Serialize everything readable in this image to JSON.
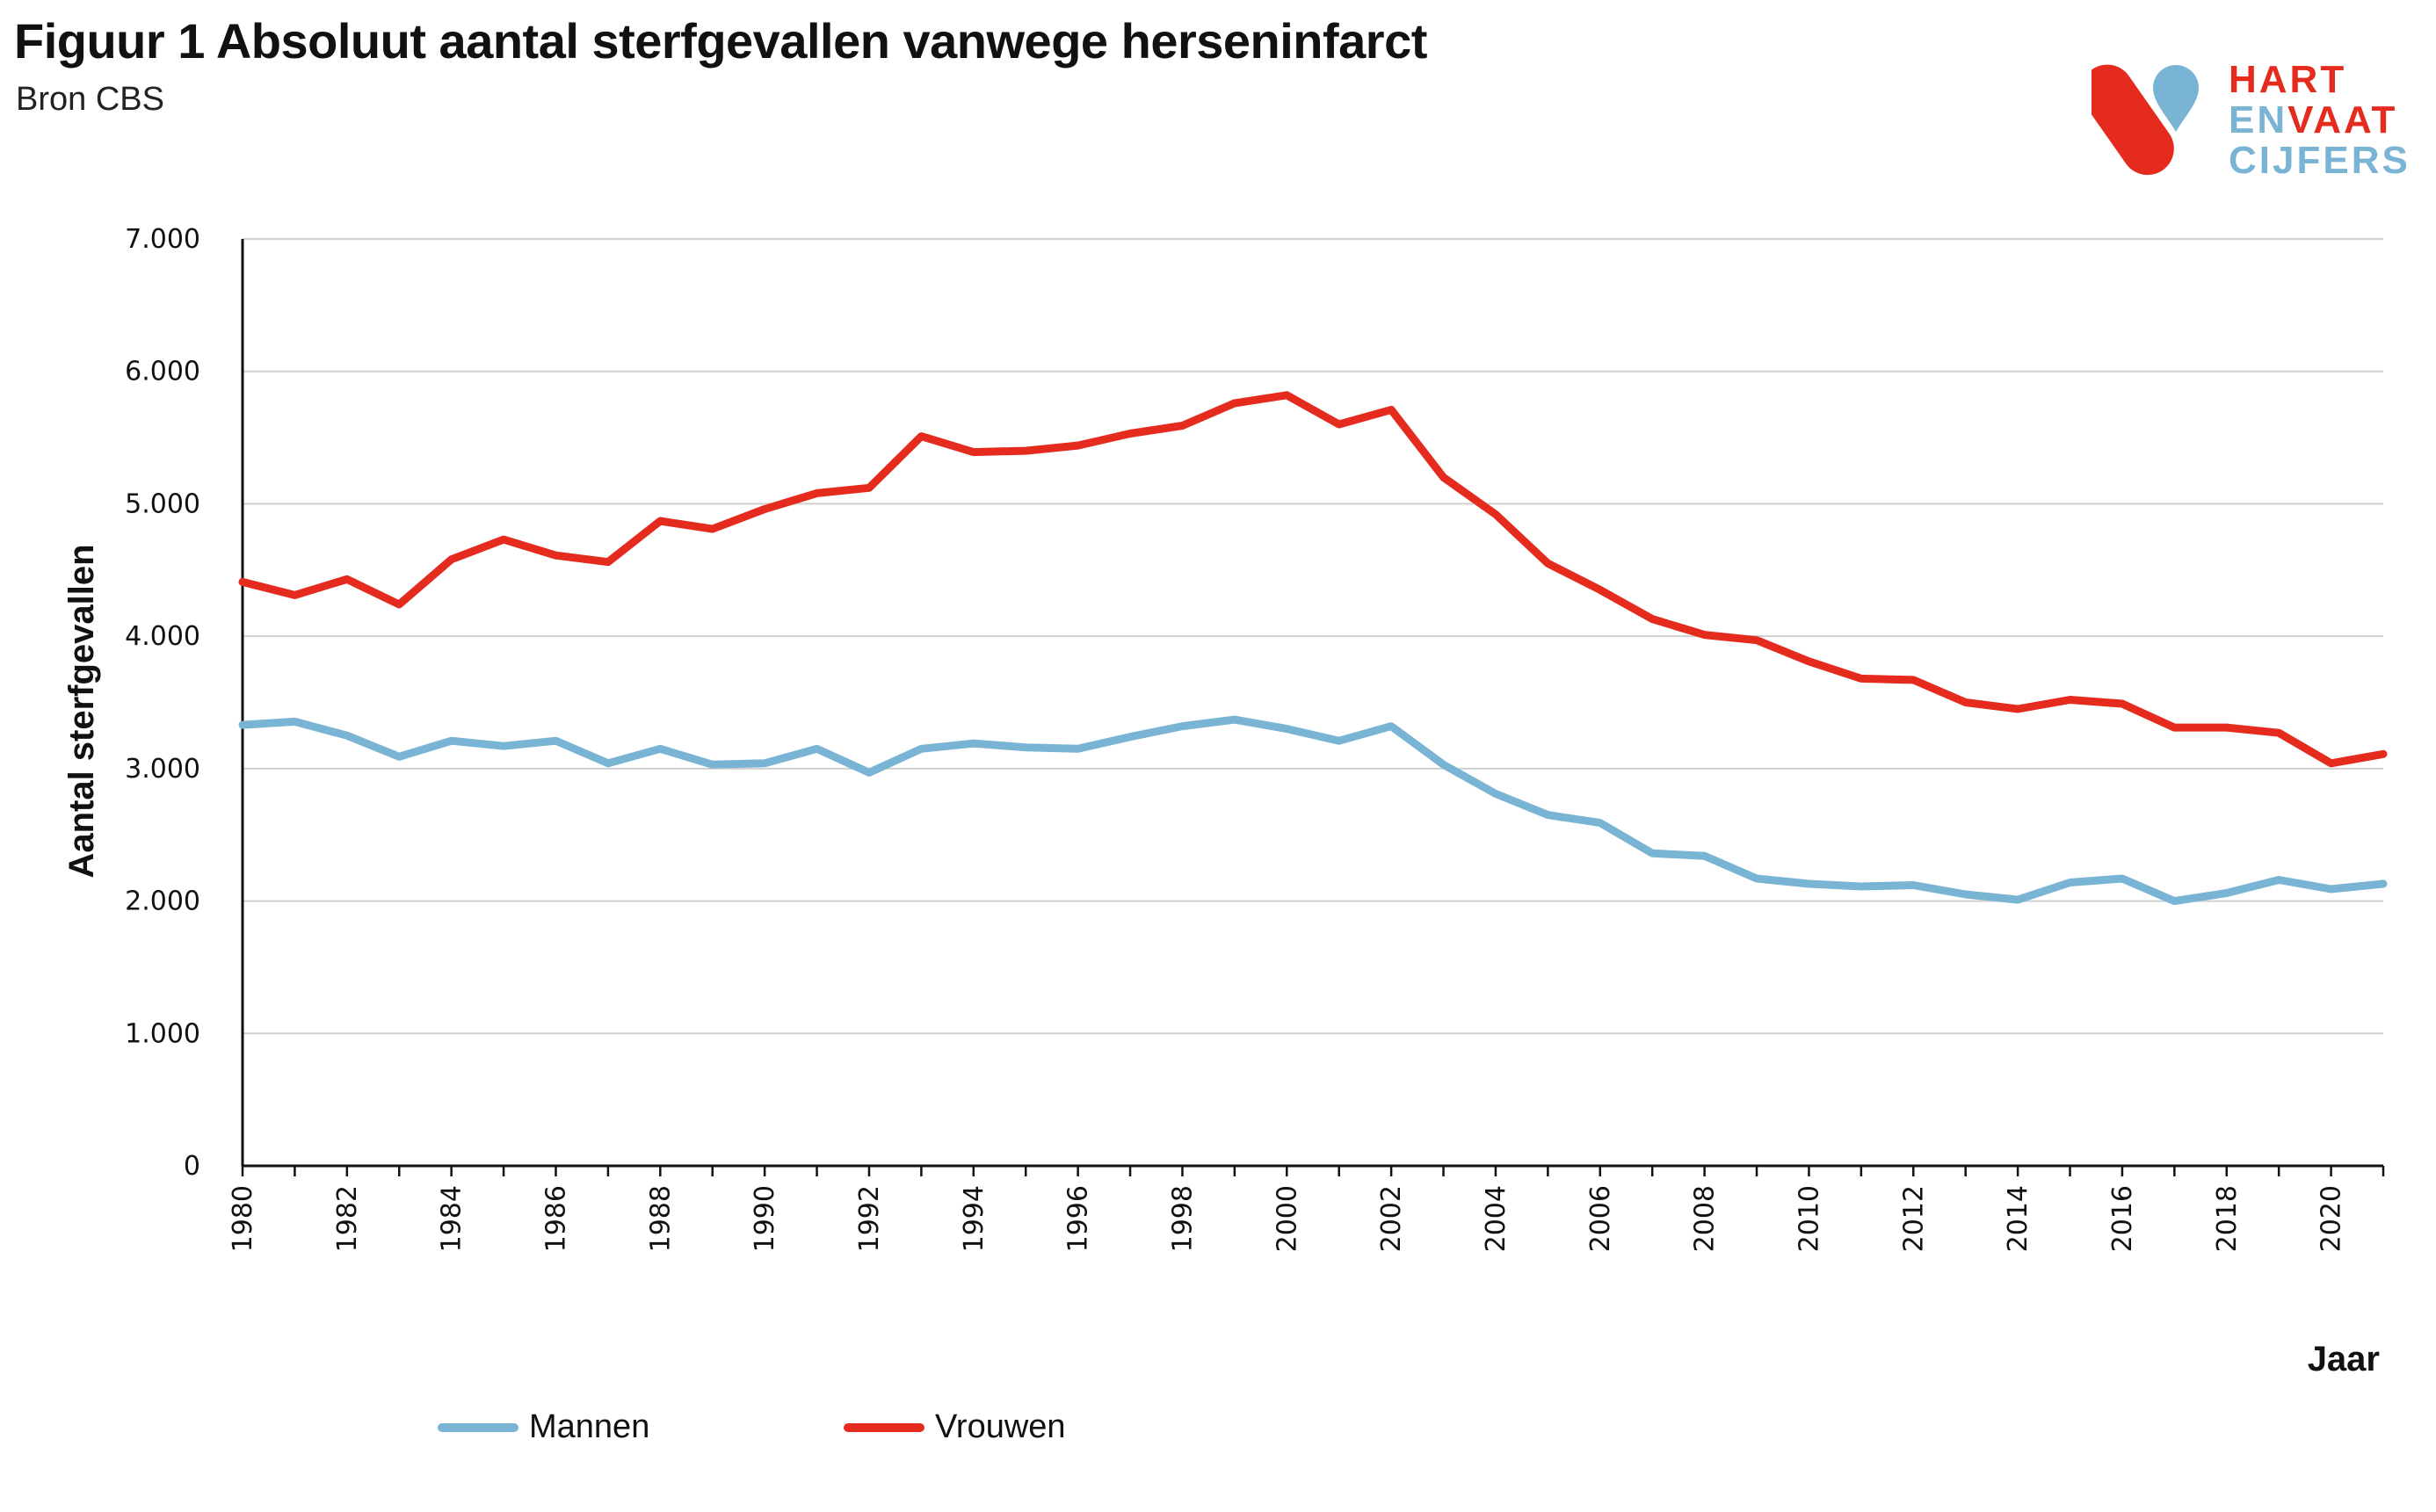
{
  "header": {
    "title": "Figuur 1 Absoluut aantal sterfgevallen vanwege herseninfarct",
    "subtitle": "Bron CBS"
  },
  "logo": {
    "line1": [
      "HART"
    ],
    "line2": [
      "EN",
      "VAAT"
    ],
    "line3": [
      "CIJFERS"
    ],
    "colors": {
      "red": "#e52b1e",
      "blue": "#7ab4d4"
    }
  },
  "chart_data": {
    "type": "line",
    "title": "Figuur 1 Absoluut aantal sterfgevallen vanwege herseninfarct",
    "xlabel": "Jaar",
    "ylabel": "Aantal sterfgevallen",
    "ylim": [
      0,
      7000
    ],
    "yticks": [
      "0",
      "1.000",
      "2.000",
      "3.000",
      "4.000",
      "5.000",
      "6.000",
      "7.000"
    ],
    "xticks": [
      "1980",
      "1982",
      "1984",
      "1986",
      "1988",
      "1990",
      "1992",
      "1994",
      "1996",
      "1998",
      "2000",
      "2002",
      "2004",
      "2006",
      "2008",
      "2010",
      "2012",
      "2014",
      "2016",
      "2018",
      "2020"
    ],
    "grid": true,
    "legend_position": "bottom",
    "x": [
      1980,
      1981,
      1982,
      1983,
      1984,
      1985,
      1986,
      1987,
      1988,
      1989,
      1990,
      1991,
      1992,
      1993,
      1994,
      1995,
      1996,
      1997,
      1998,
      1999,
      2000,
      2001,
      2002,
      2003,
      2004,
      2005,
      2006,
      2007,
      2008,
      2009,
      2010,
      2011,
      2012,
      2013,
      2014,
      2015,
      2016,
      2017,
      2018,
      2019,
      2020,
      2021
    ],
    "series": [
      {
        "name": "Mannen",
        "color": "#7ab4d4",
        "values": [
          3330,
          3355,
          3250,
          3090,
          3210,
          3170,
          3210,
          3040,
          3150,
          3030,
          3040,
          3150,
          2970,
          3150,
          3190,
          3160,
          3150,
          3240,
          3320,
          3370,
          3300,
          3210,
          3320,
          3030,
          2810,
          2650,
          2590,
          2360,
          2340,
          2170,
          2130,
          2110,
          2120,
          2050,
          2010,
          2140,
          2170,
          2000,
          2060,
          2160,
          2090,
          2130
        ]
      },
      {
        "name": "Vrouwen",
        "color": "#e52b1e",
        "values": [
          4410,
          4310,
          4430,
          4240,
          4580,
          4730,
          4610,
          4560,
          4870,
          4810,
          4960,
          5080,
          5120,
          5510,
          5390,
          5400,
          5440,
          5530,
          5590,
          5760,
          5820,
          5600,
          5710,
          5200,
          4920,
          4550,
          4350,
          4130,
          4010,
          3970,
          3810,
          3680,
          3670,
          3500,
          3450,
          3520,
          3490,
          3310,
          3310,
          3270,
          3040,
          3110
        ]
      }
    ]
  }
}
